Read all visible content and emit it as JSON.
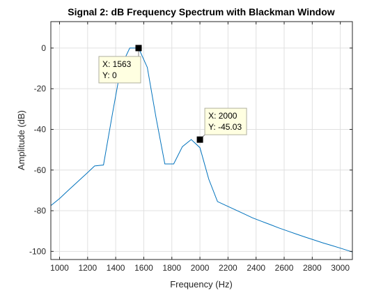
{
  "chart_data": {
    "type": "line",
    "title": "Signal 2: dB Frequency Spectrum with Blackman Window",
    "xlabel": "Frequency (Hz)",
    "ylabel": "Amplitude (dB)",
    "xlim": [
      938,
      3086
    ],
    "ylim": [
      -104,
      13
    ],
    "xticks": [
      1000,
      1200,
      1400,
      1600,
      1800,
      2000,
      2200,
      2400,
      2600,
      2800,
      3000
    ],
    "yticks": [
      0,
      -20,
      -40,
      -60,
      -80,
      -100
    ],
    "grid": true,
    "colors": {
      "line": "#0072bd",
      "grid": "#e0e0e0",
      "axes": "#262626",
      "tip_bg": "#ffffe1",
      "tip_border": "#b0b0a0"
    },
    "series": [
      {
        "x": [
          938,
          1000,
          1062,
          1125,
          1188,
          1250,
          1313,
          1375,
          1438,
          1500,
          1563,
          1625,
          1688,
          1750,
          1813,
          1875,
          1938,
          2000,
          2063,
          2125,
          2188,
          2250,
          2313,
          2375,
          2438,
          2500,
          2563,
          2625,
          2688,
          2750,
          2813,
          2875,
          2938,
          3000,
          3086
        ],
        "y": [
          -77.5,
          -74,
          -70,
          -66,
          -62,
          -58,
          -57.5,
          -33,
          -9,
          0,
          0,
          -9.5,
          -34.5,
          -57,
          -57,
          -48.5,
          -45,
          -49,
          -64.5,
          -75.5,
          -77.5,
          -79.5,
          -81.5,
          -83.5,
          -85.2,
          -86.8,
          -88.5,
          -90,
          -91.5,
          -93,
          -94.4,
          -95.8,
          -97.1,
          -98.4,
          -100.3
        ]
      }
    ],
    "datatips": [
      {
        "x": 1563,
        "y": 0,
        "x_text": "X: 1563",
        "y_text": "Y: 0"
      },
      {
        "x": 2000,
        "y": -45.03,
        "x_text": "X: 2000",
        "y_text": "Y: -45.03"
      }
    ]
  }
}
